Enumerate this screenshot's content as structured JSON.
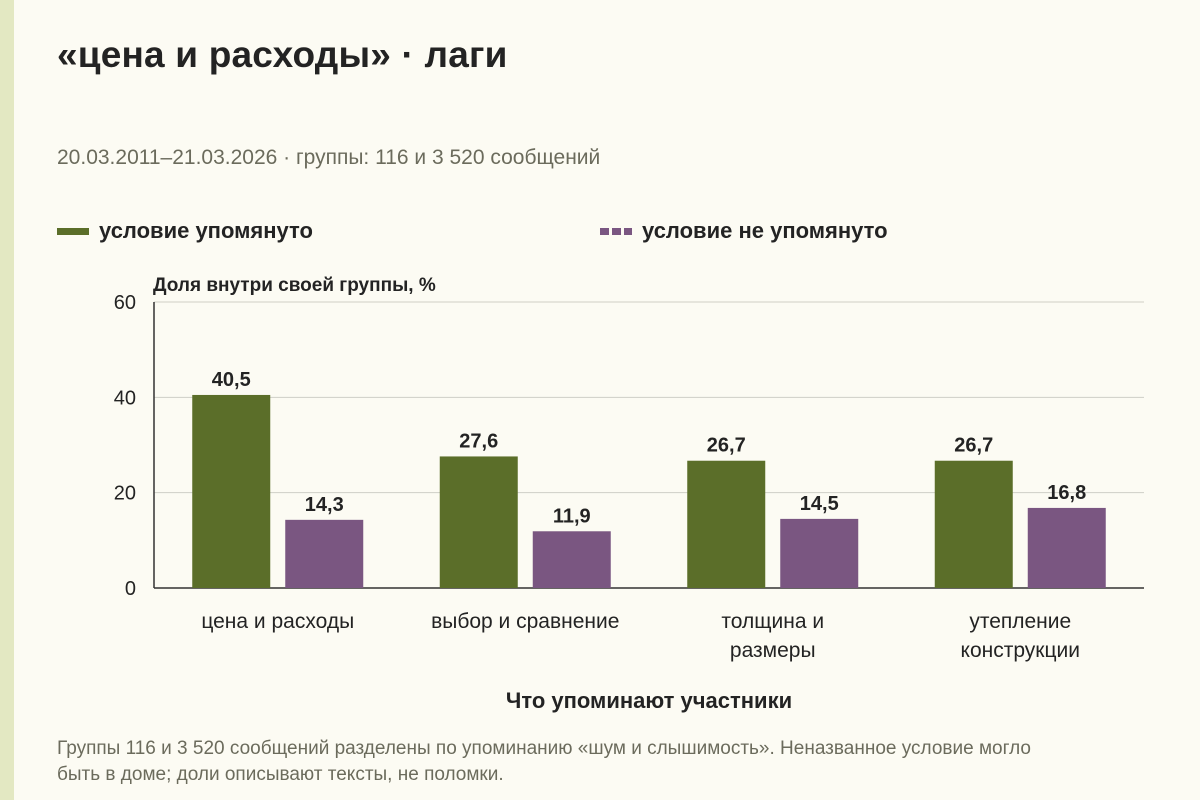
{
  "title": "«цена и расходы» · лаги",
  "subtitle": "20.03.2011–21.03.2026 · группы: 116 и 3 520 сообщений",
  "footnote": "Группы 116 и 3 520 сообщений разделены по упоминанию «шум и слышимость». Неназванное условие могло быть в доме; доли описывают тексты, не поломки.",
  "colors": {
    "series1": "#5b6e29",
    "series2": "#7a5681",
    "grid": "#cfcfc6",
    "axis": "#333333"
  },
  "chart_data": {
    "type": "bar",
    "ylabel": "Доля внутри своей группы, %",
    "xlabel": "Что упоминают участники",
    "ylim": [
      0,
      60
    ],
    "yticks": [
      0,
      20,
      40,
      60
    ],
    "grid": true,
    "legend_position": "top",
    "categories": [
      [
        "цена и расходы"
      ],
      [
        "выбор и сравнение"
      ],
      [
        "толщина и",
        "размеры"
      ],
      [
        "утепление",
        "конструкции"
      ]
    ],
    "series": [
      {
        "name": "условие упомянуто",
        "values": [
          40.5,
          27.6,
          26.7,
          26.7
        ],
        "labels": [
          "40,5",
          "27,6",
          "26,7",
          "26,7"
        ]
      },
      {
        "name": "условие не упомянуто",
        "values": [
          14.3,
          11.9,
          14.5,
          16.8
        ],
        "labels": [
          "14,3",
          "11,9",
          "14,5",
          "16,8"
        ]
      }
    ]
  }
}
